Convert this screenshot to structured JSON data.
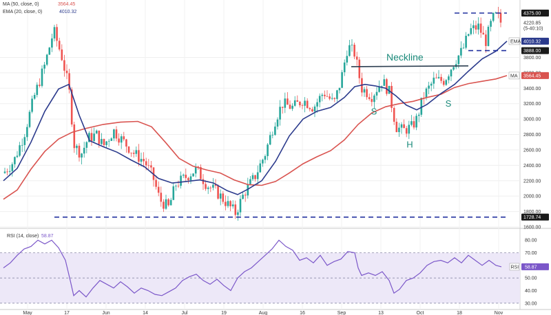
{
  "chart_data": [
    {
      "type": "candlestick",
      "legend": {
        "ma_label": "MA (50, close, 0)",
        "ma_value": "3564.45",
        "ema_label": "EMA (20, close, 0)",
        "ema_value": "4010.32"
      },
      "ylim": [
        1600,
        4500
      ],
      "yticks": [
        "1600.00",
        "1800.00",
        "2000.00",
        "2200.00",
        "2400.00",
        "2600.00",
        "2800.00",
        "3000.00",
        "3200.00",
        "3400.00",
        "3600.00",
        "3800.00"
      ],
      "price_labels": [
        {
          "label": "4375.00",
          "value": 4375,
          "style": "dark"
        },
        {
          "label": "4220.85",
          "value": 4250,
          "style": "light"
        },
        {
          "label": "(5-40:10)",
          "value": 4180,
          "style": "light"
        },
        {
          "label": "4010.32",
          "value": 4010,
          "style": "ema",
          "tag": "EMA"
        },
        {
          "label": "3888.00",
          "value": 3888,
          "style": "dark"
        },
        {
          "label": "3564.45",
          "value": 3564,
          "style": "ma",
          "tag": "MA"
        },
        {
          "label": "1728.74",
          "value": 1728,
          "style": "dark"
        }
      ],
      "levels": [
        {
          "name": "support",
          "value": 1728,
          "x_start": 79,
          "x_end": 736
        },
        {
          "name": "resistance",
          "value": 4375,
          "x_start": 660,
          "x_end": 736
        },
        {
          "name": "breakout",
          "value": 3888,
          "x_start": 680,
          "x_end": 736
        }
      ],
      "neckline": {
        "label": "Neckline",
        "points": [
          [
            510,
            3680
          ],
          [
            680,
            3690
          ]
        ]
      },
      "pattern_labels": [
        {
          "text": "S",
          "x": 543,
          "value": 3060
        },
        {
          "text": "H",
          "x": 595,
          "value": 2630
        },
        {
          "text": "S",
          "x": 651,
          "value": 3160
        }
      ],
      "xtick_labels": [
        "May",
        "17",
        "Jun",
        "14",
        "Jul",
        "19",
        "Aug",
        "16",
        "Sep",
        "13",
        "Oct",
        "18",
        "Nov"
      ],
      "series": {
        "candles": [],
        "ema20": [
          [
            5,
            2200
          ],
          [
            25,
            2360
          ],
          [
            45,
            2700
          ],
          [
            65,
            3100
          ],
          [
            85,
            3390
          ],
          [
            100,
            3450
          ],
          [
            115,
            3050
          ],
          [
            130,
            2720
          ],
          [
            150,
            2640
          ],
          [
            170,
            2570
          ],
          [
            190,
            2470
          ],
          [
            210,
            2380
          ],
          [
            230,
            2230
          ],
          [
            250,
            2170
          ],
          [
            270,
            2190
          ],
          [
            290,
            2210
          ],
          [
            310,
            2170
          ],
          [
            330,
            2070
          ],
          [
            345,
            2020
          ],
          [
            360,
            2090
          ],
          [
            380,
            2200
          ],
          [
            400,
            2450
          ],
          [
            420,
            2780
          ],
          [
            440,
            3000
          ],
          [
            460,
            3100
          ],
          [
            480,
            3150
          ],
          [
            500,
            3280
          ],
          [
            515,
            3420
          ],
          [
            530,
            3450
          ],
          [
            545,
            3430
          ],
          [
            560,
            3400
          ],
          [
            575,
            3300
          ],
          [
            590,
            3180
          ],
          [
            605,
            3120
          ],
          [
            620,
            3190
          ],
          [
            640,
            3330
          ],
          [
            660,
            3450
          ],
          [
            680,
            3620
          ],
          [
            700,
            3780
          ],
          [
            720,
            3880
          ],
          [
            736,
            4010
          ]
        ],
        "ma50": [
          [
            5,
            1960
          ],
          [
            25,
            2080
          ],
          [
            45,
            2350
          ],
          [
            65,
            2580
          ],
          [
            85,
            2740
          ],
          [
            105,
            2830
          ],
          [
            125,
            2880
          ],
          [
            150,
            2930
          ],
          [
            175,
            2960
          ],
          [
            200,
            2970
          ],
          [
            220,
            2900
          ],
          [
            240,
            2700
          ],
          [
            260,
            2490
          ],
          [
            280,
            2390
          ],
          [
            300,
            2340
          ],
          [
            320,
            2300
          ],
          [
            340,
            2210
          ],
          [
            360,
            2150
          ],
          [
            380,
            2140
          ],
          [
            400,
            2190
          ],
          [
            420,
            2300
          ],
          [
            440,
            2420
          ],
          [
            460,
            2510
          ],
          [
            480,
            2590
          ],
          [
            500,
            2730
          ],
          [
            520,
            2930
          ],
          [
            540,
            3080
          ],
          [
            560,
            3160
          ],
          [
            580,
            3200
          ],
          [
            600,
            3230
          ],
          [
            620,
            3280
          ],
          [
            640,
            3320
          ],
          [
            660,
            3410
          ],
          [
            680,
            3460
          ],
          [
            700,
            3490
          ],
          [
            720,
            3520
          ],
          [
            736,
            3564
          ]
        ]
      }
    },
    {
      "type": "line",
      "legend": {
        "label": "RSI (14, close)",
        "value": "58.87"
      },
      "tag": "RSI",
      "ylim": [
        25,
        85
      ],
      "yticks": [
        "30.00",
        "40.00",
        "50.00",
        "60.00",
        "70.00",
        "80.00"
      ],
      "band": [
        30,
        70
      ],
      "series": [
        {
          "name": "RSI",
          "values": [
            [
              5,
              58
            ],
            [
              15,
              62
            ],
            [
              25,
              68
            ],
            [
              35,
              73
            ],
            [
              45,
              75
            ],
            [
              55,
              80
            ],
            [
              65,
              77
            ],
            [
              75,
              80
            ],
            [
              85,
              74
            ],
            [
              95,
              64
            ],
            [
              102,
              48
            ],
            [
              107,
              36
            ],
            [
              115,
              40
            ],
            [
              125,
              35
            ],
            [
              135,
              42
            ],
            [
              145,
              48
            ],
            [
              155,
              45
            ],
            [
              165,
              42
            ],
            [
              175,
              47
            ],
            [
              185,
              43
            ],
            [
              195,
              38
            ],
            [
              205,
              42
            ],
            [
              215,
              40
            ],
            [
              225,
              37
            ],
            [
              235,
              36
            ],
            [
              245,
              39
            ],
            [
              255,
              42
            ],
            [
              265,
              48
            ],
            [
              275,
              51
            ],
            [
              285,
              53
            ],
            [
              295,
              48
            ],
            [
              305,
              45
            ],
            [
              315,
              49
            ],
            [
              325,
              44
            ],
            [
              335,
              40
            ],
            [
              345,
              50
            ],
            [
              355,
              55
            ],
            [
              365,
              58
            ],
            [
              375,
              63
            ],
            [
              385,
              68
            ],
            [
              395,
              73
            ],
            [
              405,
              80
            ],
            [
              415,
              75
            ],
            [
              425,
              72
            ],
            [
              435,
              64
            ],
            [
              445,
              66
            ],
            [
              455,
              62
            ],
            [
              465,
              68
            ],
            [
              475,
              60
            ],
            [
              485,
              63
            ],
            [
              495,
              65
            ],
            [
              505,
              71
            ],
            [
              515,
              70
            ],
            [
              520,
              58
            ],
            [
              525,
              52
            ],
            [
              535,
              54
            ],
            [
              545,
              52
            ],
            [
              555,
              55
            ],
            [
              565,
              48
            ],
            [
              572,
              38
            ],
            [
              580,
              41
            ],
            [
              590,
              48
            ],
            [
              600,
              50
            ],
            [
              610,
              54
            ],
            [
              620,
              60
            ],
            [
              630,
              63
            ],
            [
              640,
              64
            ],
            [
              650,
              62
            ],
            [
              660,
              66
            ],
            [
              670,
              62
            ],
            [
              680,
              68
            ],
            [
              690,
              64
            ],
            [
              700,
              60
            ],
            [
              710,
              64
            ],
            [
              720,
              60
            ],
            [
              728,
              58.87
            ]
          ]
        }
      ]
    }
  ]
}
